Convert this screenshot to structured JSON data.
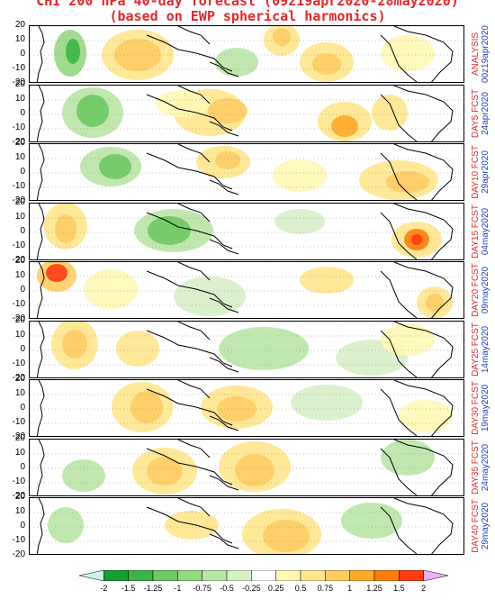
{
  "title_line1": "CHI 200 hPa 40-day forecast (09z19apr2020-28may2020)",
  "title_line2": "(based on EWP spherical harmonics)",
  "y_ticks": [
    "20",
    "10",
    "0",
    "-10",
    "-20"
  ],
  "panels": [
    {
      "label": "ANALYSIS",
      "date": "00z19apr2020"
    },
    {
      "label": "DAY5 FCST",
      "date": "24apr2020"
    },
    {
      "label": "DAY10 FCST",
      "date": "29apr2020"
    },
    {
      "label": "DAY15 FCST",
      "date": "04may2020"
    },
    {
      "label": "DAY20 FCST",
      "date": "09may2020"
    },
    {
      "label": "DAY25 FCST",
      "date": "14may2020"
    },
    {
      "label": "DAY30 FCST",
      "date": "19may2020"
    },
    {
      "label": "DAY35 FCST",
      "date": "24may2020"
    },
    {
      "label": "DAY40 FCST",
      "date": "29may2020"
    }
  ],
  "colorbar": {
    "labels": [
      "-2",
      "-1.5",
      "-1.25",
      "-1",
      "-0.75",
      "-0.5",
      "-0.25",
      "0.25",
      "0.5",
      "0.75",
      "1",
      "1.25",
      "1.5",
      "2"
    ],
    "colors": [
      "#14a032",
      "#3cb446",
      "#6ec864",
      "#96d782",
      "#b9e6a5",
      "#d7f0c8",
      "#ffffff",
      "#fff8b4",
      "#ffe68c",
      "#ffcd64",
      "#ffaa28",
      "#ff7d0a",
      "#ff3c14",
      "#e6b4f0"
    ]
  }
}
